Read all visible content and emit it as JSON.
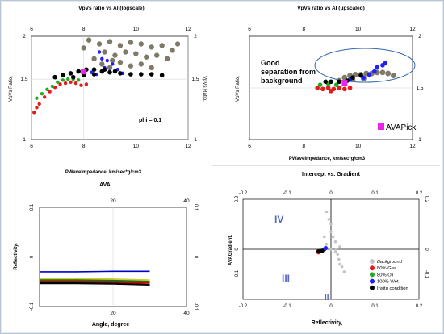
{
  "colors": {
    "background": "#7f7a68",
    "gas": "#e41a1c",
    "oil": "#22aa22",
    "wet": "#1f1fff",
    "insitu": "#000000",
    "pick": "#ee22ee",
    "ellipse": "#3366aa",
    "ava_line": "#0000cc",
    "ava_red": "#cc0000",
    "ava_green": "#226622",
    "ava_yellow": "#cccc33"
  },
  "chart_data": [
    {
      "id": "logscale",
      "type": "scatter",
      "title": "VpVs ratio vs AI (logscale)",
      "xlabel": "PWaveImpedance, km/sec*g/cm3",
      "ylabel": "VpVs Ratio,",
      "xlim": [
        6,
        12
      ],
      "ylim": [
        1,
        2
      ],
      "y_log": true,
      "x_ticks": [
        "6",
        "8",
        "10",
        "12"
      ],
      "y_ticks": [
        "1",
        "1.5",
        "2"
      ],
      "annotation": "phi = 0.1",
      "series": [
        {
          "key": "background",
          "points": [
            [
              8.2,
              1.95
            ],
            [
              8.6,
              1.9
            ],
            [
              9.0,
              1.93
            ],
            [
              9.4,
              1.88
            ],
            [
              9.8,
              1.92
            ],
            [
              10.2,
              1.9
            ],
            [
              10.6,
              1.86
            ],
            [
              11.0,
              1.88
            ],
            [
              11.4,
              1.82
            ],
            [
              8.8,
              1.8
            ],
            [
              9.2,
              1.76
            ],
            [
              9.6,
              1.8
            ],
            [
              10.0,
              1.78
            ],
            [
              10.4,
              1.74
            ],
            [
              10.8,
              1.76
            ],
            [
              11.2,
              1.72
            ],
            [
              8.4,
              1.72
            ],
            [
              8.7,
              1.66
            ],
            [
              9.0,
              1.62
            ],
            [
              9.4,
              1.68
            ],
            [
              9.8,
              1.64
            ],
            [
              10.2,
              1.66
            ],
            [
              10.6,
              1.62
            ],
            [
              8.0,
              1.85
            ],
            [
              11.6,
              1.9
            ],
            [
              9.1,
              1.7
            ]
          ]
        },
        {
          "key": "gas",
          "points": [
            [
              6.1,
              1.2
            ],
            [
              6.3,
              1.27
            ],
            [
              6.5,
              1.33
            ],
            [
              6.7,
              1.38
            ],
            [
              6.9,
              1.42
            ],
            [
              7.1,
              1.45
            ],
            [
              7.3,
              1.46
            ],
            [
              7.5,
              1.47
            ],
            [
              7.7,
              1.46
            ],
            [
              7.9,
              1.44
            ],
            [
              8.1,
              1.45
            ],
            [
              6.2,
              1.24
            ]
          ]
        },
        {
          "key": "oil",
          "points": [
            [
              6.2,
              1.32
            ],
            [
              6.4,
              1.36
            ],
            [
              6.6,
              1.4
            ],
            [
              6.8,
              1.43
            ],
            [
              7.0,
              1.47
            ],
            [
              7.2,
              1.49
            ],
            [
              7.4,
              1.5
            ],
            [
              7.6,
              1.5
            ],
            [
              7.8,
              1.49
            ]
          ]
        },
        {
          "key": "wet",
          "points": [
            [
              8.6,
              1.8
            ],
            [
              8.7,
              1.72
            ],
            [
              8.9,
              1.7
            ],
            [
              9.1,
              1.66
            ],
            [
              8.8,
              1.62
            ],
            [
              9.3,
              1.6
            ],
            [
              9.0,
              1.58
            ],
            [
              8.5,
              1.55
            ],
            [
              9.5,
              1.56
            ],
            [
              8.3,
              1.57
            ]
          ]
        },
        {
          "key": "insitu",
          "points": [
            [
              6.9,
              1.52
            ],
            [
              7.2,
              1.54
            ],
            [
              7.5,
              1.56
            ],
            [
              7.8,
              1.58
            ],
            [
              8.1,
              1.6
            ],
            [
              8.4,
              1.6
            ],
            [
              8.7,
              1.58
            ],
            [
              9.0,
              1.57
            ],
            [
              9.4,
              1.56
            ],
            [
              9.8,
              1.55
            ],
            [
              10.2,
              1.55
            ],
            [
              10.6,
              1.55
            ],
            [
              11.0,
              1.54
            ],
            [
              7.6,
              1.52
            ],
            [
              8.0,
              1.54
            ],
            [
              8.4,
              1.55
            ],
            [
              8.8,
              1.6
            ],
            [
              9.2,
              1.58
            ]
          ]
        },
        {
          "key": "pick",
          "points": [
            [
              8.0,
              1.58
            ]
          ]
        }
      ]
    },
    {
      "id": "upscaled",
      "type": "scatter",
      "title": "VpVs ratio vs AI (upscaled)",
      "xlabel": "PWaveImpedance, km/sec*g/cm3",
      "ylabel": "VpVs Ratio,",
      "xlim": [
        6,
        12
      ],
      "ylim": [
        1,
        2
      ],
      "x_ticks": [
        "6",
        "8",
        "10",
        "12"
      ],
      "y_ticks": [
        "1",
        "1.5",
        "2"
      ],
      "annotation": "Good separation from background",
      "legend": "AVAPick",
      "series": [
        {
          "key": "background",
          "points": [
            [
              9.5,
              1.6
            ],
            [
              9.7,
              1.62
            ],
            [
              9.9,
              1.63
            ],
            [
              10.1,
              1.63
            ],
            [
              10.3,
              1.64
            ],
            [
              10.5,
              1.64
            ],
            [
              10.7,
              1.65
            ],
            [
              10.9,
              1.65
            ],
            [
              11.1,
              1.64
            ],
            [
              11.3,
              1.62
            ],
            [
              9.3,
              1.57
            ],
            [
              9.8,
              1.58
            ],
            [
              10.2,
              1.59
            ]
          ]
        },
        {
          "key": "gas",
          "points": [
            [
              8.5,
              1.5
            ],
            [
              8.7,
              1.49
            ],
            [
              8.9,
              1.5
            ],
            [
              9.1,
              1.49
            ],
            [
              9.3,
              1.5
            ],
            [
              9.5,
              1.49
            ],
            [
              9.7,
              1.5
            ],
            [
              9.0,
              1.47
            ]
          ]
        },
        {
          "key": "oil",
          "points": [
            [
              8.6,
              1.53
            ],
            [
              8.9,
              1.54
            ],
            [
              9.2,
              1.53
            ],
            [
              9.5,
              1.54
            ]
          ]
        },
        {
          "key": "wet",
          "points": [
            [
              10.2,
              1.6
            ],
            [
              10.4,
              1.63
            ],
            [
              10.6,
              1.66
            ],
            [
              10.7,
              1.7
            ],
            [
              10.9,
              1.72
            ],
            [
              11.0,
              1.74
            ],
            [
              9.7,
              1.58
            ]
          ]
        },
        {
          "key": "insitu",
          "points": [
            [
              8.8,
              1.56
            ],
            [
              9.0,
              1.56
            ],
            [
              9.3,
              1.56
            ],
            [
              9.6,
              1.57
            ],
            [
              9.8,
              1.6
            ],
            [
              10.1,
              1.62
            ]
          ]
        },
        {
          "key": "pick",
          "points": [
            [
              9.5,
              1.55
            ]
          ]
        }
      ]
    },
    {
      "id": "ava",
      "type": "line",
      "title": "AVA",
      "xlabel": "Angle, degree",
      "ylabel": "Reflectivity,",
      "xlim": [
        0,
        40
      ],
      "ylim": [
        -0.1,
        0.1
      ],
      "x_ticks": [
        "20",
        "40"
      ],
      "y_ticks": [
        "-0.1",
        "0",
        "0.1"
      ],
      "series": [
        {
          "key": "ava_line",
          "x": [
            0,
            10,
            20,
            30
          ],
          "values": [
            -0.03,
            -0.03,
            -0.029,
            -0.029
          ]
        },
        {
          "key": "ava_yellow",
          "x": [
            0,
            10,
            20,
            30
          ],
          "values": [
            -0.044,
            -0.044,
            -0.045,
            -0.047
          ]
        },
        {
          "key": "ava_green",
          "x": [
            0,
            10,
            20,
            30
          ],
          "values": [
            -0.047,
            -0.047,
            -0.048,
            -0.05
          ]
        },
        {
          "key": "ava_red",
          "x": [
            0,
            10,
            20,
            30
          ],
          "values": [
            -0.05,
            -0.05,
            -0.051,
            -0.052
          ]
        },
        {
          "key": "insitu",
          "x": [
            0,
            10,
            20,
            30
          ],
          "values": [
            -0.053,
            -0.053,
            -0.054,
            -0.056
          ]
        }
      ]
    },
    {
      "id": "intercept",
      "type": "scatter",
      "title": "Intercept vs. Gradient",
      "xlabel": "Reflectivity,",
      "ylabel": "AVAGradient,",
      "xlim": [
        -0.2,
        0.2
      ],
      "ylim": [
        -0.2,
        0.2
      ],
      "x_ticks": [
        "-0.2",
        "-0.1",
        "0",
        "0.1",
        "0.2"
      ],
      "y_ticks": [
        "-0.1",
        "0",
        "0.2"
      ],
      "quadrants": [
        "IV",
        "III",
        "II"
      ],
      "legend": [
        "Background",
        "80% Gas",
        "80% Oil",
        "100% Wet",
        "Insitu condition"
      ],
      "series": [
        {
          "key": "background",
          "points": [
            [
              -0.01,
              0.15
            ],
            [
              -0.005,
              0.12
            ],
            [
              0.0,
              0.1
            ],
            [
              0.0,
              0.07
            ],
            [
              0.005,
              0.05
            ],
            [
              0.01,
              0.03
            ],
            [
              0.012,
              0.0
            ],
            [
              0.015,
              -0.02
            ],
            [
              0.018,
              -0.04
            ],
            [
              0.02,
              -0.06
            ],
            [
              0.025,
              -0.07
            ],
            [
              0.03,
              -0.09
            ],
            [
              -0.01,
              0.02
            ],
            [
              -0.015,
              0.05
            ],
            [
              0.0,
              0.0
            ],
            [
              0.01,
              -0.01
            ],
            [
              -0.02,
              0.0
            ],
            [
              0.02,
              0.01
            ]
          ]
        },
        {
          "key": "gas",
          "points": [
            [
              -0.03,
              -0.01
            ],
            [
              -0.028,
              -0.012
            ]
          ]
        },
        {
          "key": "oil",
          "points": [
            [
              -0.025,
              -0.005
            ],
            [
              -0.022,
              -0.008
            ]
          ]
        },
        {
          "key": "wet",
          "points": [
            [
              -0.015,
              0.0
            ],
            [
              -0.012,
              0.005
            ]
          ]
        },
        {
          "key": "insitu",
          "points": [
            [
              -0.028,
              -0.008
            ],
            [
              -0.02,
              -0.006
            ]
          ]
        }
      ]
    }
  ]
}
